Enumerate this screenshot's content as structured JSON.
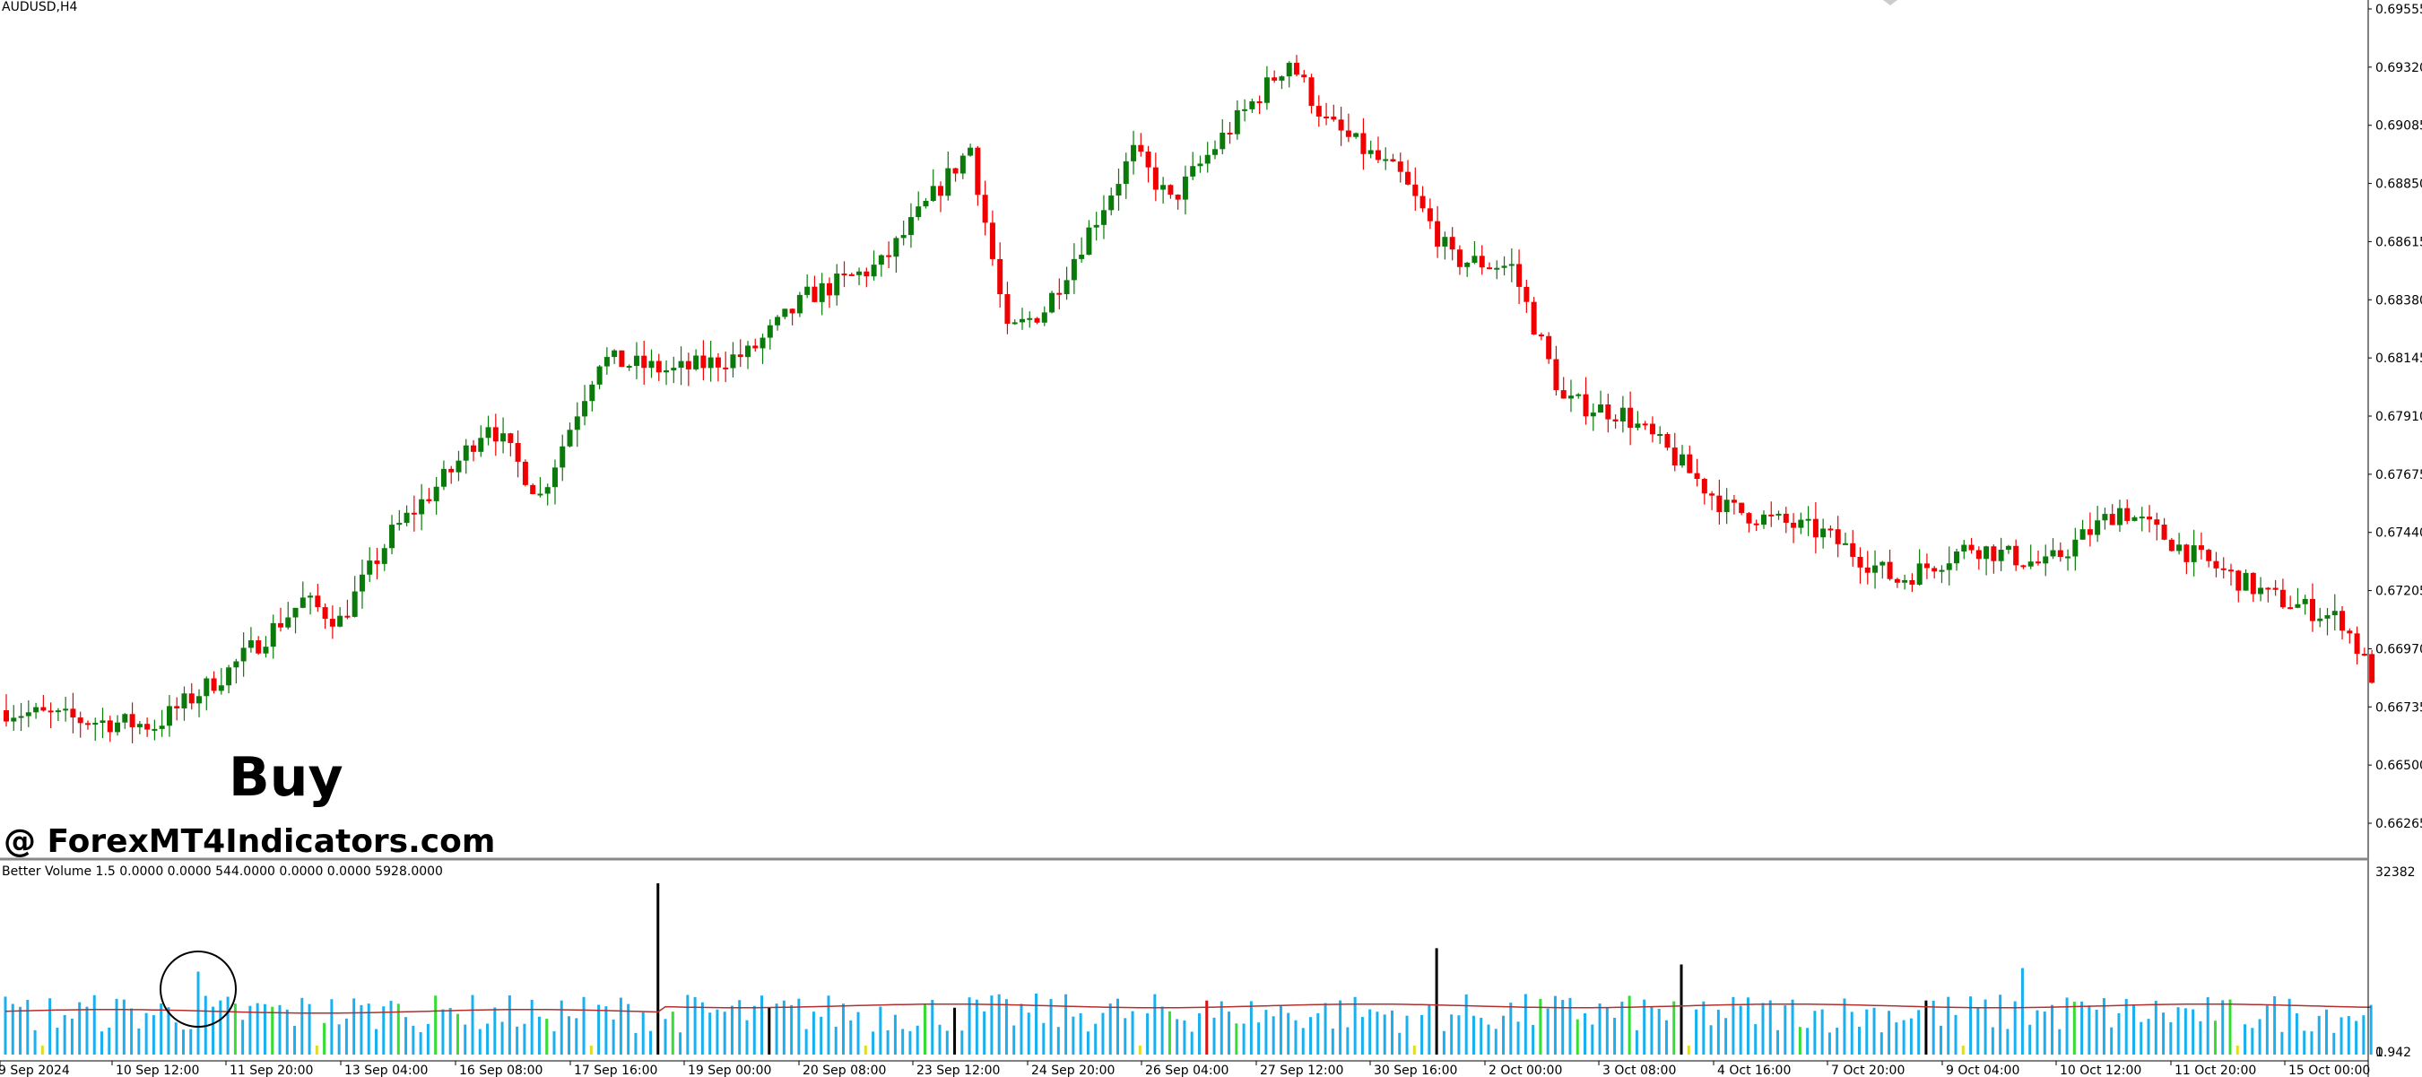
{
  "chart": {
    "symbol": "AUDUSD,H4",
    "indicator_label": "Better Volume 1.5 0.0000 0.0000 544.0000 0.0000 0.0000 5928.0000",
    "annotation": "Buy",
    "watermark": "@ ForexMT4Indicators.com",
    "colors": {
      "bull": "#0a7a0a",
      "bear": "#f00000",
      "volume": "#1ab0f0",
      "volume_green": "#33dd33",
      "volume_black": "#000000",
      "volume_red": "#e01010",
      "volume_yellow": "#dddd22",
      "ma": "#b03030",
      "frame": "#000000"
    }
  },
  "chart_data": {
    "type": "candlestick",
    "price_axis": [
      "0.69555",
      "0.69320",
      "0.69085",
      "0.68850",
      "0.68615",
      "0.68380",
      "0.68145",
      "0.67910",
      "0.67675",
      "0.67440",
      "0.67205",
      "0.66970",
      "0.66735",
      "0.66500",
      "0.66265"
    ],
    "ylim": [
      0.66265,
      0.69555
    ],
    "volume_axis": [
      "32382",
      "0"
    ],
    "volume_axis_extra": "1.942",
    "time_axis": [
      "9 Sep 2024",
      "10 Sep 12:00",
      "11 Sep 20:00",
      "13 Sep 04:00",
      "16 Sep 08:00",
      "17 Sep 16:00",
      "19 Sep 00:00",
      "20 Sep 08:00",
      "23 Sep 12:00",
      "24 Sep 20:00",
      "26 Sep 04:00",
      "27 Sep 12:00",
      "30 Sep 16:00",
      "2 Oct 00:00",
      "3 Oct 08:00",
      "4 Oct 16:00",
      "7 Oct 20:00",
      "9 Oct 04:00",
      "10 Oct 12:00",
      "11 Oct 20:00",
      "15 Oct 00:00"
    ],
    "anchor_points": [
      [
        0,
        0.6674
      ],
      [
        10,
        0.667
      ],
      [
        20,
        0.6668
      ],
      [
        30,
        0.669
      ],
      [
        40,
        0.6718
      ],
      [
        45,
        0.671
      ],
      [
        52,
        0.6745
      ],
      [
        60,
        0.677
      ],
      [
        65,
        0.679
      ],
      [
        72,
        0.676
      ],
      [
        80,
        0.6815
      ],
      [
        90,
        0.681
      ],
      [
        100,
        0.6817
      ],
      [
        108,
        0.684
      ],
      [
        118,
        0.6853
      ],
      [
        130,
        0.69
      ],
      [
        135,
        0.6825
      ],
      [
        140,
        0.6835
      ],
      [
        152,
        0.6898
      ],
      [
        157,
        0.6878
      ],
      [
        164,
        0.6904
      ],
      [
        173,
        0.6935
      ],
      [
        178,
        0.691
      ],
      [
        188,
        0.6888
      ],
      [
        195,
        0.6855
      ],
      [
        203,
        0.6852
      ],
      [
        210,
        0.6798
      ],
      [
        218,
        0.6793
      ],
      [
        224,
        0.6778
      ],
      [
        232,
        0.6755
      ],
      [
        245,
        0.6745
      ],
      [
        255,
        0.6726
      ],
      [
        265,
        0.674
      ],
      [
        275,
        0.6732
      ],
      [
        285,
        0.6755
      ],
      [
        295,
        0.6736
      ],
      [
        305,
        0.672
      ],
      [
        315,
        0.671
      ],
      [
        319,
        0.6688
      ]
    ],
    "candle_count": 320,
    "volume_ma_level": 0.24
  }
}
